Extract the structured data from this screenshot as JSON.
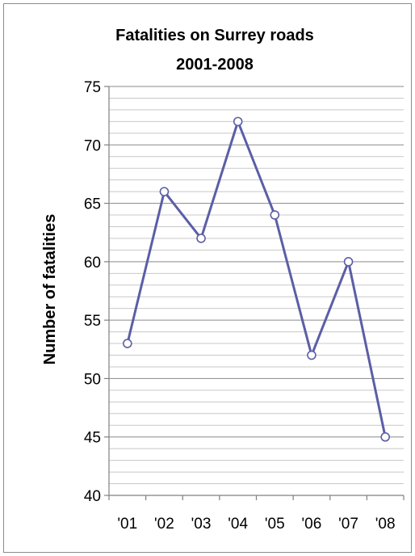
{
  "chart_data": {
    "type": "line",
    "title": [
      "Fatalities on Surrey roads",
      "2001-2008"
    ],
    "xlabel": "",
    "ylabel": "Number of fatalities",
    "categories": [
      "'01",
      "'02",
      "'03",
      "'04",
      "'05",
      "'06",
      "'07",
      "'08"
    ],
    "series": [
      {
        "values": [
          53,
          66,
          62,
          72,
          64,
          52,
          60,
          45
        ]
      }
    ],
    "ylim": [
      40,
      75
    ],
    "y_ticks": [
      40,
      45,
      50,
      55,
      60,
      65,
      70,
      75
    ],
    "minor_gridlines_every": 1,
    "grid": true,
    "legend": "none",
    "colors": {
      "line": "#5b5ea6",
      "marker_fill": "#ffffff",
      "major_grid": "#8a8a8a",
      "minor_grid": "#c8c8c8",
      "axis": "#808080"
    }
  }
}
